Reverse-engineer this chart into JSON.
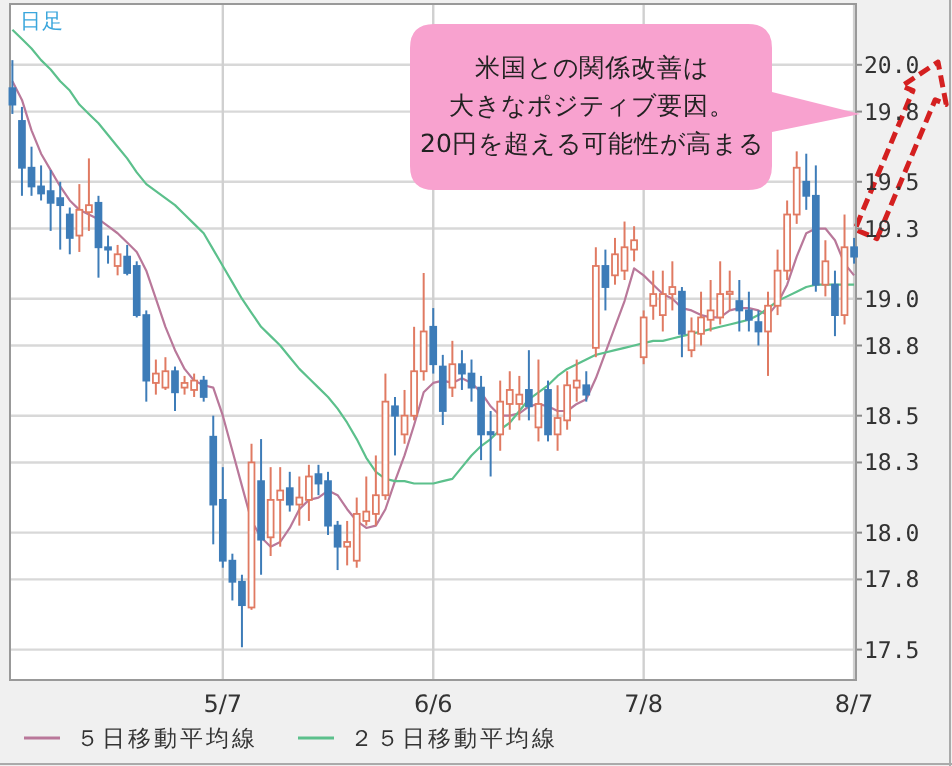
{
  "chart_data": {
    "type": "candlestick",
    "legend": "bottom",
    "grid": true,
    "annotations": [
      "日足",
      "米国との関係改善は",
      "大きなポジティブ要因。",
      "20円を超える可能性が高まる"
    ],
    "categories": [
      null,
      null,
      null,
      null,
      null,
      null,
      null,
      null,
      null,
      null,
      null,
      null,
      null,
      null,
      null,
      null,
      null,
      null,
      null,
      null,
      null,
      null,
      "5/7",
      null,
      null,
      null,
      null,
      null,
      null,
      null,
      null,
      null,
      null,
      null,
      null,
      null,
      null,
      null,
      null,
      null,
      null,
      null,
      null,
      null,
      "6/6",
      null,
      null,
      null,
      null,
      null,
      null,
      null,
      null,
      null,
      null,
      null,
      null,
      null,
      null,
      null,
      null,
      null,
      null,
      null,
      null,
      null,
      "7/8",
      null,
      null,
      null,
      null,
      null,
      null,
      null,
      null,
      null,
      null,
      null,
      null,
      null,
      null,
      null,
      null,
      null,
      null,
      null,
      null,
      null,
      "8/7"
    ],
    "ylim": [
      17.37,
      20.26
    ],
    "yticks": [
      {
        "value": 20,
        "label": "20.0"
      },
      19.8,
      19.5,
      19.3,
      {
        "value": 19,
        "label": "19.0"
      },
      18.8,
      18.5,
      18.3,
      {
        "value": 18,
        "label": "18.0"
      },
      17.8,
      17.5
    ],
    "ohlc": [
      [
        19.9,
        20.02,
        19.79,
        19.83
      ],
      [
        19.76,
        19.82,
        19.44,
        19.56
      ],
      [
        19.56,
        19.65,
        19.44,
        19.48
      ],
      [
        19.48,
        19.57,
        19.42,
        19.45
      ],
      [
        19.46,
        19.55,
        19.29,
        19.41
      ],
      [
        19.43,
        19.5,
        19.21,
        19.4
      ],
      [
        19.36,
        19.39,
        19.19,
        19.26
      ],
      [
        19.27,
        19.49,
        19.2,
        19.38
      ],
      [
        19.37,
        19.6,
        19.29,
        19.4
      ],
      [
        19.41,
        19.44,
        19.09,
        19.22
      ],
      [
        19.22,
        19.27,
        19.15,
        19.21
      ],
      [
        19.14,
        19.23,
        19.1,
        19.19
      ],
      [
        19.18,
        19.23,
        19.1,
        19.11
      ],
      [
        19.14,
        19.16,
        18.92,
        18.93
      ],
      [
        18.93,
        18.95,
        18.56,
        18.65
      ],
      [
        18.64,
        18.74,
        18.59,
        18.68
      ],
      [
        18.62,
        18.75,
        18.61,
        18.69
      ],
      [
        18.69,
        18.71,
        18.52,
        18.6
      ],
      [
        18.62,
        18.67,
        18.59,
        18.64
      ],
      [
        18.61,
        18.68,
        18.58,
        18.65
      ],
      [
        18.65,
        18.67,
        18.56,
        18.58
      ],
      [
        18.41,
        18.5,
        17.95,
        18.12
      ],
      [
        18.14,
        18.28,
        17.85,
        17.88
      ],
      [
        17.88,
        17.91,
        17.71,
        17.79
      ],
      [
        17.79,
        17.82,
        17.51,
        17.69
      ],
      [
        17.68,
        18.38,
        17.67,
        18.3
      ],
      [
        18.22,
        18.4,
        17.82,
        17.97
      ],
      [
        17.98,
        18.28,
        17.9,
        18.14
      ],
      [
        18.14,
        18.28,
        17.94,
        18.18
      ],
      [
        18.19,
        18.26,
        18.09,
        18.12
      ],
      [
        18.12,
        18.24,
        18.03,
        18.15
      ],
      [
        18.14,
        18.29,
        18.05,
        18.24
      ],
      [
        18.25,
        18.29,
        18.16,
        18.21
      ],
      [
        18.22,
        18.26,
        17.99,
        18.03
      ],
      [
        18.03,
        18.05,
        17.84,
        17.94
      ],
      [
        17.94,
        18.05,
        17.86,
        17.96
      ],
      [
        17.88,
        18.15,
        17.85,
        18.08
      ],
      [
        18.05,
        18.24,
        18.03,
        18.09
      ],
      [
        18.08,
        18.33,
        18.03,
        18.16
      ],
      [
        18.16,
        18.68,
        18.14,
        18.56
      ],
      [
        18.54,
        18.58,
        18.33,
        18.5
      ],
      [
        18.42,
        18.61,
        18.38,
        18.5
      ],
      [
        18.5,
        18.88,
        18.48,
        18.69
      ],
      [
        18.69,
        19.11,
        18.65,
        18.86
      ],
      [
        18.88,
        18.96,
        18.68,
        18.72
      ],
      [
        18.71,
        18.76,
        18.46,
        18.52
      ],
      [
        18.62,
        18.82,
        18.58,
        18.72
      ],
      [
        18.72,
        18.78,
        18.61,
        18.68
      ],
      [
        18.68,
        18.74,
        18.56,
        18.62
      ],
      [
        18.62,
        18.67,
        18.31,
        18.42
      ],
      [
        18.43,
        18.52,
        18.24,
        18.42
      ],
      [
        18.42,
        18.65,
        18.35,
        18.56
      ],
      [
        18.55,
        18.69,
        18.44,
        18.61
      ],
      [
        18.55,
        18.67,
        18.48,
        18.59
      ],
      [
        18.61,
        18.78,
        18.48,
        18.54
      ],
      [
        18.45,
        18.74,
        18.39,
        18.55
      ],
      [
        18.61,
        18.65,
        18.39,
        18.42
      ],
      [
        18.42,
        18.63,
        18.35,
        18.49
      ],
      [
        18.48,
        18.69,
        18.44,
        18.63
      ],
      [
        18.62,
        18.74,
        18.56,
        18.65
      ],
      [
        18.63,
        18.69,
        18.56,
        18.59
      ],
      [
        18.79,
        19.22,
        18.75,
        19.14
      ],
      [
        19.14,
        19.21,
        18.95,
        19.05
      ],
      [
        19.1,
        19.26,
        19.06,
        19.19
      ],
      [
        19.12,
        19.33,
        19.08,
        19.22
      ],
      [
        19.21,
        19.31,
        19.16,
        19.25
      ],
      [
        18.75,
        18.95,
        18.72,
        18.92
      ],
      [
        18.97,
        19.12,
        18.91,
        19.02
      ],
      [
        18.93,
        19.12,
        18.86,
        19.02
      ],
      [
        19.02,
        19.16,
        18.95,
        19.05
      ],
      [
        19.03,
        19.05,
        18.75,
        18.85
      ],
      [
        18.78,
        18.92,
        18.75,
        18.86
      ],
      [
        18.85,
        19.03,
        18.8,
        18.92
      ],
      [
        18.91,
        19.08,
        18.86,
        18.95
      ],
      [
        18.92,
        19.16,
        18.89,
        19.02
      ],
      [
        19.02,
        19.12,
        18.95,
        19.03
      ],
      [
        18.99,
        19.08,
        18.86,
        18.95
      ],
      [
        18.95,
        19.03,
        18.86,
        18.91
      ],
      [
        18.9,
        18.95,
        18.8,
        18.86
      ],
      [
        18.86,
        19.03,
        18.67,
        18.97
      ],
      [
        18.97,
        19.21,
        18.93,
        19.12
      ],
      [
        19.12,
        19.42,
        19.08,
        19.36
      ],
      [
        19.36,
        19.63,
        19.32,
        19.56
      ],
      [
        19.5,
        19.62,
        19.38,
        19.44
      ],
      [
        19.44,
        19.57,
        19.03,
        19.06
      ],
      [
        19.06,
        19.25,
        19.01,
        19.16
      ],
      [
        19.06,
        19.12,
        18.84,
        18.93
      ],
      [
        18.93,
        19.36,
        18.89,
        19.22
      ],
      [
        19.22,
        19.26,
        19.15,
        19.18
      ]
    ],
    "colors": [
      "#3d7cb8",
      "#3d7cb8",
      "#3d7cb8",
      "#3d7cb8",
      "#3d7cb8",
      "#3d7cb8",
      "#3d7cb8",
      "#e07a62",
      "#e07a62",
      "#3d7cb8",
      "#3d7cb8",
      "#e07a62",
      "#3d7cb8",
      "#3d7cb8",
      "#3d7cb8",
      "#e07a62",
      "#e07a62",
      "#3d7cb8",
      "#e07a62",
      "#e07a62",
      "#3d7cb8",
      "#3d7cb8",
      "#3d7cb8",
      "#3d7cb8",
      "#3d7cb8",
      "#e07a62",
      "#3d7cb8",
      "#e07a62",
      "#e07a62",
      "#3d7cb8",
      "#e07a62",
      "#e07a62",
      "#3d7cb8",
      "#3d7cb8",
      "#3d7cb8",
      "#e07a62",
      "#e07a62",
      "#e07a62",
      "#e07a62",
      "#e07a62",
      "#3d7cb8",
      "#e07a62",
      "#e07a62",
      "#e07a62",
      "#3d7cb8",
      "#3d7cb8",
      "#e07a62",
      "#3d7cb8",
      "#3d7cb8",
      "#3d7cb8",
      "#3d7cb8",
      "#e07a62",
      "#e07a62",
      "#e07a62",
      "#3d7cb8",
      "#e07a62",
      "#3d7cb8",
      "#e07a62",
      "#e07a62",
      "#e07a62",
      "#3d7cb8",
      "#e07a62",
      "#3d7cb8",
      "#e07a62",
      "#e07a62",
      "#e07a62",
      "#e07a62",
      "#e07a62",
      "#e07a62",
      "#e07a62",
      "#3d7cb8",
      "#e07a62",
      "#e07a62",
      "#e07a62",
      "#e07a62",
      "#e07a62",
      "#3d7cb8",
      "#3d7cb8",
      "#3d7cb8",
      "#e07a62",
      "#e07a62",
      "#e07a62",
      "#e07a62",
      "#3d7cb8",
      "#3d7cb8",
      "#e07a62",
      "#3d7cb8",
      "#e07a62",
      "#3d7cb8"
    ],
    "series": [
      {
        "name": "５日移動平均線",
        "type": "line",
        "color": "#b9789a",
        "values": [
          19.93,
          19.85,
          19.72,
          19.62,
          19.55,
          19.48,
          19.42,
          19.38,
          19.36,
          19.34,
          19.31,
          19.28,
          19.24,
          19.2,
          19.12,
          19.0,
          18.88,
          18.78,
          18.7,
          18.65,
          18.63,
          18.62,
          18.5,
          18.35,
          18.2,
          18.05,
          17.98,
          17.94,
          17.96,
          18.02,
          18.1,
          18.14,
          18.15,
          18.18,
          18.16,
          18.1,
          18.05,
          18.02,
          18.03,
          18.1,
          18.22,
          18.33,
          18.46,
          18.6,
          18.64,
          18.65,
          18.64,
          18.66,
          18.64,
          18.6,
          18.54,
          18.5,
          18.5,
          18.51,
          18.54,
          18.55,
          18.54,
          18.52,
          18.52,
          18.55,
          18.57,
          18.66,
          18.77,
          18.88,
          18.99,
          19.13,
          19.1,
          19.06,
          19.02,
          19.0,
          18.96,
          18.95,
          18.93,
          18.92,
          18.92,
          18.95,
          18.96,
          18.96,
          18.95,
          18.93,
          18.98,
          19.06,
          19.18,
          19.28,
          19.3,
          19.3,
          19.25,
          19.15,
          19.1
        ]
      },
      {
        "name": "２５日移動平均線",
        "type": "line",
        "color": "#5cc08c",
        "values": [
          20.15,
          20.11,
          20.07,
          20.02,
          19.98,
          19.93,
          19.89,
          19.83,
          19.79,
          19.75,
          19.7,
          19.65,
          19.6,
          19.54,
          19.49,
          19.46,
          19.43,
          19.4,
          19.36,
          19.32,
          19.28,
          19.21,
          19.14,
          19.07,
          19.0,
          18.94,
          18.88,
          18.84,
          18.8,
          18.75,
          18.7,
          18.66,
          18.62,
          18.58,
          18.53,
          18.47,
          18.4,
          18.32,
          18.26,
          18.23,
          18.22,
          18.22,
          18.21,
          18.21,
          18.21,
          18.22,
          18.23,
          18.28,
          18.33,
          18.37,
          18.4,
          18.44,
          18.47,
          18.52,
          18.57,
          18.6,
          18.63,
          18.67,
          18.7,
          18.72,
          18.74,
          18.76,
          18.77,
          18.78,
          18.79,
          18.8,
          18.81,
          18.82,
          18.82,
          18.83,
          18.84,
          18.85,
          18.86,
          18.87,
          18.88,
          18.89,
          18.9,
          18.91,
          18.93,
          18.96,
          18.99,
          19.01,
          19.03,
          19.05,
          19.06,
          19.06,
          19.06,
          19.06,
          19.06
        ]
      }
    ]
  }
}
